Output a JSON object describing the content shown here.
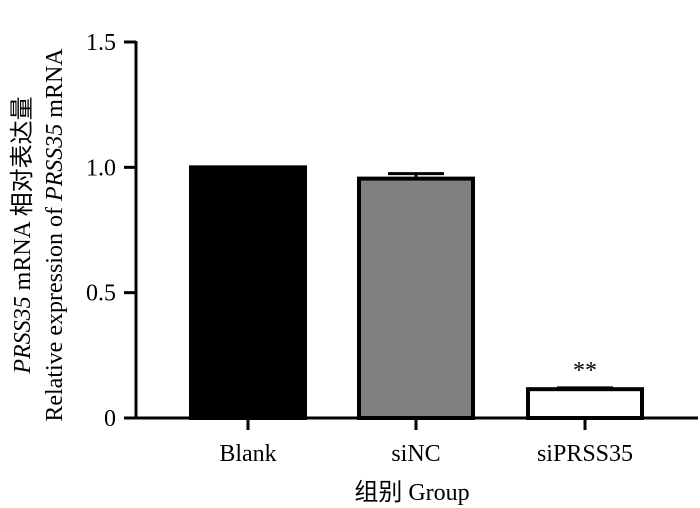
{
  "chart_data": {
    "type": "bar",
    "categories": [
      "Blank",
      "siNC",
      "siPRSS35"
    ],
    "values": [
      1.0,
      0.955,
      0.115
    ],
    "errors": [
      0.0,
      0.02,
      0.005
    ],
    "bar_colors": [
      "#000000",
      "#808080",
      "#ffffff"
    ],
    "ylim": [
      0,
      1.5
    ],
    "yticks": [
      0,
      0.5,
      1.0,
      1.5
    ],
    "ytick_labels": [
      "0",
      "0.5",
      "1.0",
      "1.5"
    ],
    "xlabel": "组别 Group",
    "ylabel_line1_italic": "PRSS35",
    "ylabel_line1_rest": " mRNA 相对表达量",
    "ylabel_line2_prefix": "Relative expression of ",
    "ylabel_line2_italic": "PRSS35",
    "ylabel_line2_suffix": " mRNA",
    "annotations": [
      {
        "category": "siPRSS35",
        "text": "**"
      }
    ]
  }
}
